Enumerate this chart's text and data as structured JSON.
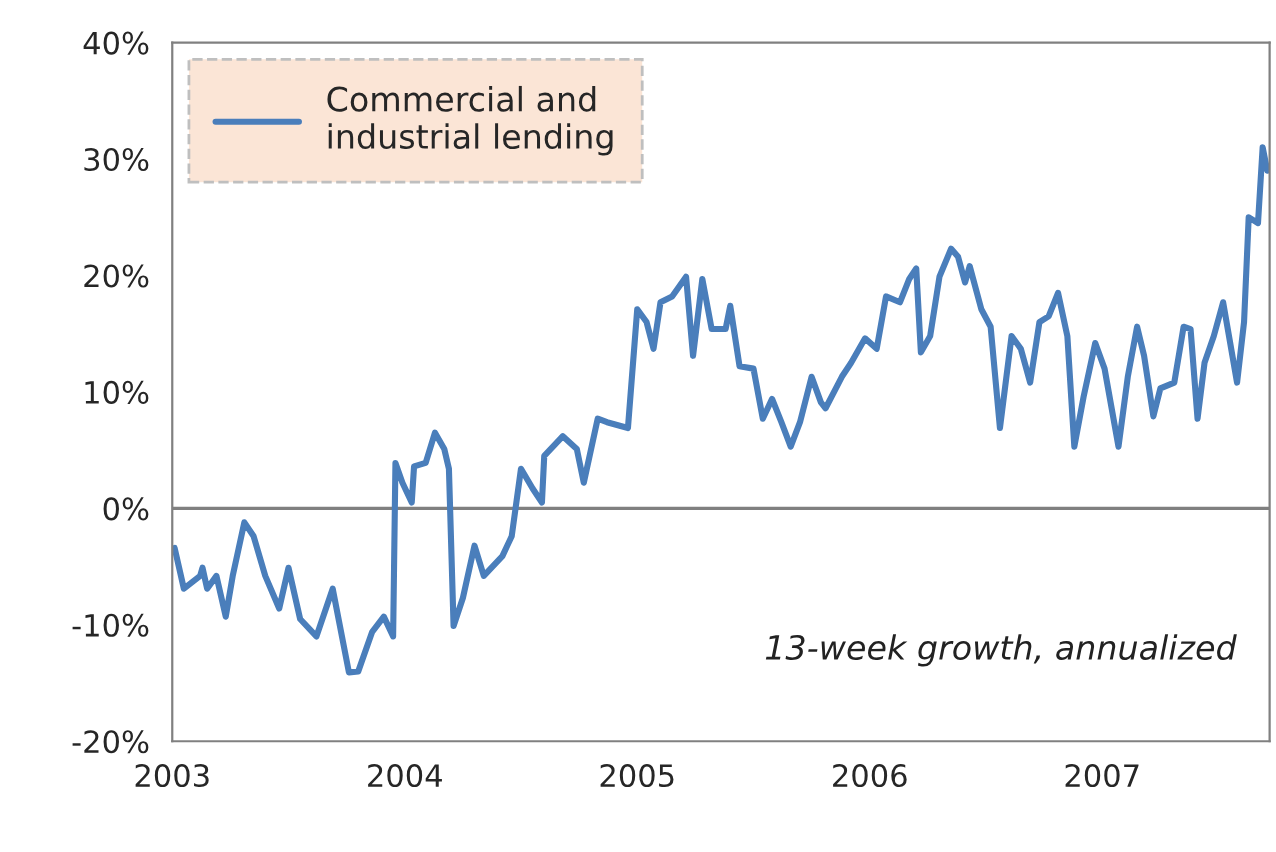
{
  "chart_data": {
    "type": "line",
    "x": [
      2003.01,
      2003.05,
      2003.12,
      2003.13,
      2003.15,
      2003.19,
      2003.23,
      2003.26,
      2003.31,
      2003.35,
      2003.4,
      2003.46,
      2003.5,
      2003.55,
      2003.62,
      2003.69,
      2003.76,
      2003.8,
      2003.86,
      2003.91,
      2003.95,
      2003.96,
      2003.99,
      2004.03,
      2004.04,
      2004.09,
      2004.13,
      2004.17,
      2004.19,
      2004.21,
      2004.25,
      2004.3,
      2004.34,
      2004.42,
      2004.46,
      2004.5,
      2004.55,
      2004.59,
      2004.6,
      2004.68,
      2004.74,
      2004.77,
      2004.83,
      2004.87,
      2004.96,
      2005.0,
      2005.04,
      2005.07,
      2005.1,
      2005.15,
      2005.21,
      2005.24,
      2005.28,
      2005.32,
      2005.38,
      2005.4,
      2005.44,
      2005.5,
      2005.54,
      2005.58,
      2005.62,
      2005.66,
      2005.7,
      2005.75,
      2005.79,
      2005.81,
      2005.88,
      2005.92,
      2005.98,
      2006.03,
      2006.07,
      2006.13,
      2006.17,
      2006.2,
      2006.22,
      2006.26,
      2006.3,
      2006.35,
      2006.38,
      2006.41,
      2006.43,
      2006.48,
      2006.52,
      2006.56,
      2006.61,
      2006.65,
      2006.69,
      2006.73,
      2006.77,
      2006.81,
      2006.85,
      2006.88,
      2006.92,
      2006.97,
      2007.01,
      2007.07,
      2007.11,
      2007.15,
      2007.18,
      2007.22,
      2007.25,
      2007.31,
      2007.35,
      2007.38,
      2007.41,
      2007.44,
      2007.48,
      2007.52,
      2007.58,
      2007.61,
      2007.63,
      2007.67,
      2007.69,
      2007.71
    ],
    "series": [
      {
        "name": "Commercial and\nindustrial lending",
        "color": "#4a7ebb",
        "values": [
          -3.4,
          -6.9,
          -5.8,
          -5.1,
          -6.9,
          -5.8,
          -9.3,
          -5.8,
          -1.2,
          -2.4,
          -5.8,
          -8.6,
          -5.1,
          -9.5,
          -11.0,
          -6.9,
          -14.1,
          -14.0,
          -10.6,
          -9.3,
          -11.0,
          3.9,
          2.2,
          0.5,
          3.6,
          3.9,
          6.5,
          5.1,
          3.4,
          -10.1,
          -7.7,
          -3.2,
          -5.8,
          -4.1,
          -2.4,
          3.4,
          1.7,
          0.5,
          4.5,
          6.2,
          5.1,
          2.2,
          7.7,
          7.4,
          6.9,
          17.1,
          16.0,
          13.7,
          17.7,
          18.2,
          19.9,
          13.1,
          19.7,
          15.4,
          15.4,
          17.4,
          12.2,
          12.0,
          7.7,
          9.4,
          7.4,
          5.3,
          7.4,
          11.3,
          9.1,
          8.6,
          11.3,
          12.5,
          14.6,
          13.7,
          18.2,
          17.7,
          19.7,
          20.6,
          13.4,
          14.8,
          19.9,
          22.3,
          21.6,
          19.4,
          20.8,
          17.1,
          15.6,
          6.9,
          14.8,
          13.7,
          10.8,
          16.0,
          16.5,
          18.5,
          14.8,
          5.3,
          9.6,
          14.2,
          12.0,
          5.3,
          11.3,
          15.6,
          13.1,
          7.9,
          10.3,
          10.8,
          15.6,
          15.4,
          7.7,
          12.5,
          14.8,
          17.7,
          10.8,
          16.0,
          25.0,
          24.5,
          31.0,
          29.0
        ]
      }
    ],
    "xlim": [
      2003,
      2007.72
    ],
    "xticks": [
      2003,
      2004,
      2005,
      2006,
      2007
    ],
    "ylim": [
      -20,
      40
    ],
    "yticks": [
      {
        "value": -20,
        "label": "-20%"
      },
      {
        "value": -10,
        "label": "-10%"
      },
      {
        "value": 0,
        "label": "0%"
      },
      {
        "value": 10,
        "label": "10%"
      },
      {
        "value": 20,
        "label": "20%"
      },
      {
        "value": 30,
        "label": "30%"
      },
      {
        "value": 40,
        "label": "40%"
      }
    ],
    "ref_lines": [
      {
        "axis": "y",
        "value": 0,
        "color": "#808080"
      }
    ],
    "annotations": [
      "13-week growth, annualized"
    ],
    "legend": "top left",
    "grid": false,
    "marker": "none",
    "line_style": "solid"
  }
}
